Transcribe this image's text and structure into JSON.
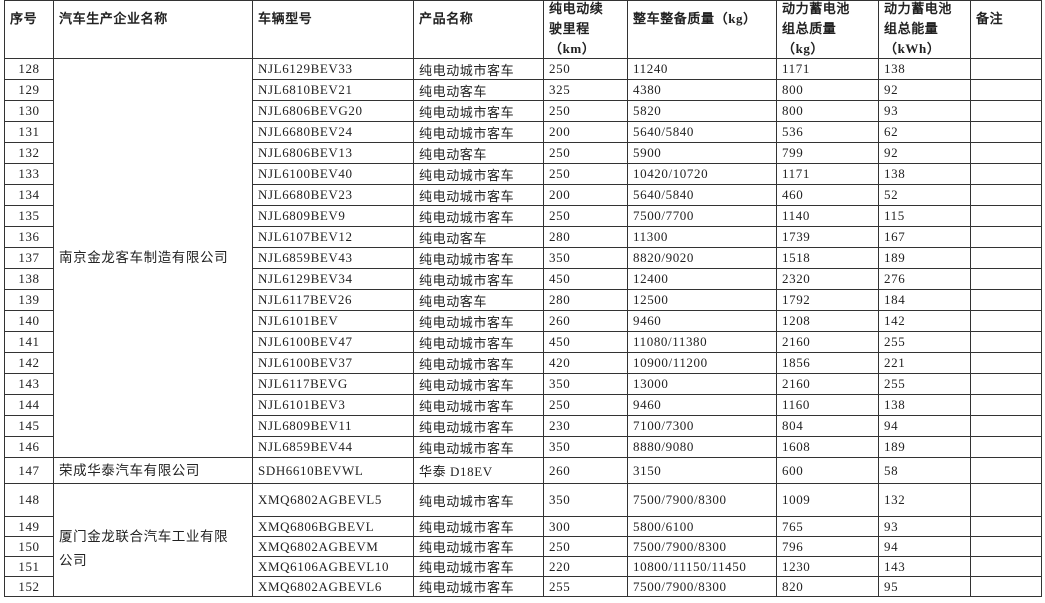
{
  "headers": [
    {
      "lines": [
        "序号"
      ]
    },
    {
      "lines": [
        "汽车生产企业名称"
      ]
    },
    {
      "lines": [
        "车辆型号"
      ]
    },
    {
      "lines": [
        "产品名称"
      ]
    },
    {
      "lines": [
        "纯电动续",
        "驶里程",
        "（km）"
      ]
    },
    {
      "lines": [
        "整车整备质量（kg）"
      ]
    },
    {
      "lines": [
        "动力蓄电池",
        "组总质量",
        "（kg）"
      ]
    },
    {
      "lines": [
        "动力蓄电池",
        "组总能量",
        "（kWh）"
      ]
    },
    {
      "lines": [
        "备注"
      ]
    }
  ],
  "companies": [
    "南京金龙客车制造有限公司",
    "荣成华泰汽车有限公司",
    "厦门金龙联合汽车工业有限公司"
  ],
  "rows": [
    [
      "128",
      "NJL6129BEV33",
      "纯电动城市客车",
      "250",
      "11240",
      "1171",
      "138",
      ""
    ],
    [
      "129",
      "NJL6810BEV21",
      "纯电动客车",
      "325",
      "4380",
      "800",
      "92",
      ""
    ],
    [
      "130",
      "NJL6806BEVG20",
      "纯电动城市客车",
      "250",
      "5820",
      "800",
      "93",
      ""
    ],
    [
      "131",
      "NJL6680BEV24",
      "纯电动城市客车",
      "200",
      "5640/5840",
      "536",
      "62",
      ""
    ],
    [
      "132",
      "NJL6806BEV13",
      "纯电动客车",
      "250",
      "5900",
      "799",
      "92",
      ""
    ],
    [
      "133",
      "NJL6100BEV40",
      "纯电动城市客车",
      "250",
      "10420/10720",
      "1171",
      "138",
      ""
    ],
    [
      "134",
      "NJL6680BEV23",
      "纯电动城市客车",
      "200",
      "5640/5840",
      "460",
      "52",
      ""
    ],
    [
      "135",
      "NJL6809BEV9",
      "纯电动城市客车",
      "250",
      "7500/7700",
      "1140",
      "115",
      ""
    ],
    [
      "136",
      "NJL6107BEV12",
      "纯电动客车",
      "280",
      "11300",
      "1739",
      "167",
      ""
    ],
    [
      "137",
      "NJL6859BEV43",
      "纯电动城市客车",
      "350",
      "8820/9020",
      "1518",
      "189",
      ""
    ],
    [
      "138",
      "NJL6129BEV34",
      "纯电动城市客车",
      "450",
      "12400",
      "2320",
      "276",
      ""
    ],
    [
      "139",
      "NJL6117BEV26",
      "纯电动客车",
      "280",
      "12500",
      "1792",
      "184",
      ""
    ],
    [
      "140",
      "NJL6101BEV",
      "纯电动城市客车",
      "260",
      "9460",
      "1208",
      "142",
      ""
    ],
    [
      "141",
      "NJL6100BEV47",
      "纯电动城市客车",
      "450",
      "11080/11380",
      "2160",
      "255",
      ""
    ],
    [
      "142",
      "NJL6100BEV37",
      "纯电动城市客车",
      "420",
      "10900/11200",
      "1856",
      "221",
      ""
    ],
    [
      "143",
      "NJL6117BEVG",
      "纯电动城市客车",
      "350",
      "13000",
      "2160",
      "255",
      ""
    ],
    [
      "144",
      "NJL6101BEV3",
      "纯电动城市客车",
      "250",
      "9460",
      "1160",
      "138",
      ""
    ],
    [
      "145",
      "NJL6809BEV11",
      "纯电动城市客车",
      "230",
      "7100/7300",
      "804",
      "94",
      ""
    ],
    [
      "146",
      "NJL6859BEV44",
      "纯电动城市客车",
      "350",
      "8880/9080",
      "1608",
      "189",
      ""
    ],
    [
      "147",
      "SDH6610BEVWL",
      "华泰 D18EV",
      "260",
      "3150",
      "600",
      "58",
      ""
    ],
    [
      "148",
      "XMQ6802AGBEVL5",
      "纯电动城市客车",
      "350",
      "7500/7900/8300",
      "1009",
      "132",
      ""
    ],
    [
      "149",
      "XMQ6806BGBEVL",
      "纯电动城市客车",
      "300",
      "5800/6100",
      "765",
      "93",
      ""
    ],
    [
      "150",
      "XMQ6802AGBEVM",
      "纯电动城市客车",
      "250",
      "7500/7900/8300",
      "796",
      "94",
      ""
    ],
    [
      "151",
      "XMQ6106AGBEVL10",
      "纯电动城市客车",
      "220",
      "10800/11150/11450",
      "1230",
      "143",
      ""
    ],
    [
      "152",
      "XMQ6802AGBEVL6",
      "纯电动城市客车",
      "255",
      "7500/7900/8300",
      "820",
      "95",
      ""
    ]
  ]
}
